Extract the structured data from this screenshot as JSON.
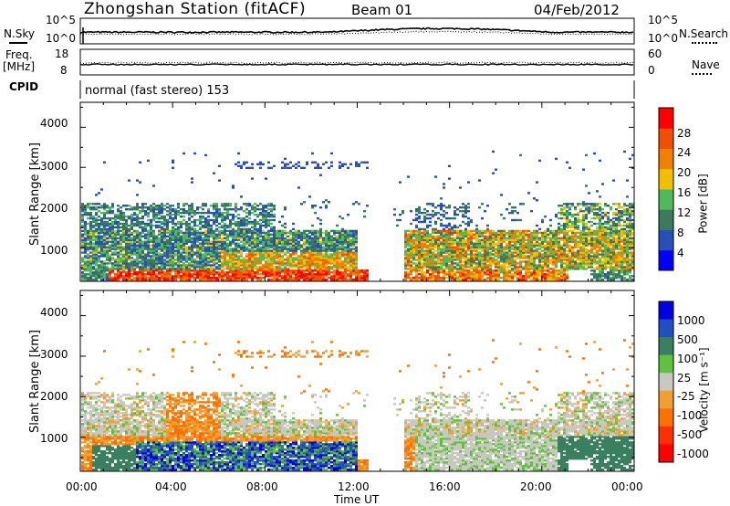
{
  "header": {
    "station": "Zhongshan Station (fitACF)",
    "beam": "Beam 01",
    "date": "04/Feb/2012"
  },
  "top_panels": {
    "nsky": {
      "label": "N.Sky",
      "ticks": [
        "10^5",
        "10^0"
      ]
    },
    "nsearch": {
      "label": "N.Search",
      "ticks": [
        "10^5",
        "10^0"
      ]
    },
    "freq": {
      "label_line1": "Freq.",
      "label_line2": "[MHz]",
      "ticks": [
        "18",
        "8"
      ]
    },
    "nave": {
      "label": "Nave",
      "ticks": [
        "60",
        "0"
      ]
    },
    "cpid": {
      "label": "CPID",
      "value": "normal (fast stereo) 153"
    }
  },
  "colors": {
    "power_scale": [
      "#0000ff",
      "#2a4fb8",
      "#3b7a5c",
      "#52b85a",
      "#f0c000",
      "#f08000",
      "#f05000",
      "#ff0000"
    ],
    "velocity_scale": [
      "#0000e0",
      "#2050c0",
      "#3a8060",
      "#60c040",
      "#c8c8c0",
      "#f0a030",
      "#ff7000",
      "#ff3000",
      "#ff0000"
    ]
  },
  "chart_data": [
    {
      "type": "heatmap",
      "title": "",
      "ylabel": "Slant Range [km]",
      "ylim": [
        180,
        4600
      ],
      "yticks": [
        "1000",
        "2000",
        "3000",
        "4000"
      ],
      "xlim": [
        "00:00",
        "24:00"
      ],
      "colorbar": {
        "label": "Power [dB]",
        "ticks": [
          "4",
          "8",
          "12",
          "16",
          "20",
          "24",
          "28"
        ],
        "range": [
          0,
          30
        ]
      }
    },
    {
      "type": "heatmap",
      "title": "",
      "ylabel": "Slant Range [km]",
      "ylim": [
        180,
        4600
      ],
      "yticks": [
        "1000",
        "2000",
        "3000",
        "4000"
      ],
      "xlim": [
        "00:00",
        "24:00"
      ],
      "xlabel": "Time UT",
      "xticks": [
        "00:00",
        "04:00",
        "08:00",
        "12:00",
        "16:00",
        "20:00",
        "00:00"
      ],
      "colorbar": {
        "label": "Velocity [m s⁻¹]",
        "ticks": [
          "1000",
          "500",
          "100",
          "25",
          "-25",
          "-100",
          "-500",
          "-1000"
        ]
      }
    }
  ]
}
